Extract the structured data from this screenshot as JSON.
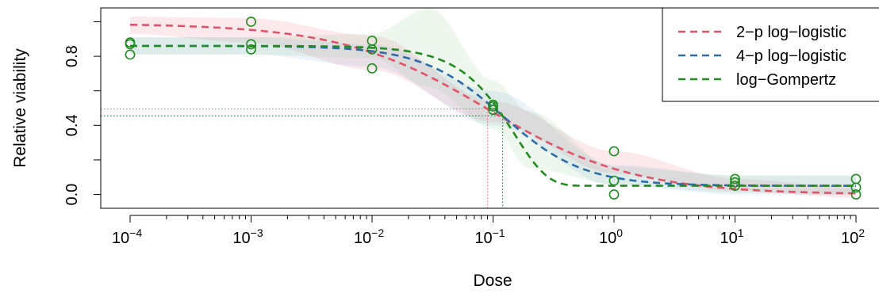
{
  "chart_data": {
    "type": "scatter",
    "title": "",
    "xlabel": "Dose",
    "ylabel": "Relative viability",
    "x_scale": "log10",
    "xlim": [
      0.0001,
      100
    ],
    "ylim": [
      -0.08,
      1.08
    ],
    "x_ticks": [
      {
        "value": 0.0001,
        "base": "10",
        "exp": "−4"
      },
      {
        "value": 0.001,
        "base": "10",
        "exp": "−3"
      },
      {
        "value": 0.01,
        "base": "10",
        "exp": "−2"
      },
      {
        "value": 0.1,
        "base": "10",
        "exp": "−1"
      },
      {
        "value": 1,
        "base": "10",
        "exp": "0"
      },
      {
        "value": 10,
        "base": "10",
        "exp": "1"
      },
      {
        "value": 100,
        "base": "10",
        "exp": "2"
      }
    ],
    "y_ticks": [
      {
        "value": 0.0,
        "label": "0.0"
      },
      {
        "value": 0.4,
        "label": "0.4"
      },
      {
        "value": 0.8,
        "label": "0.8"
      }
    ],
    "grid": false,
    "legend_position": "top-right",
    "points": {
      "name": "observations",
      "color": "#228B22",
      "data": [
        {
          "x": 0.0001,
          "y": 0.87
        },
        {
          "x": 0.0001,
          "y": 0.88
        },
        {
          "x": 0.0001,
          "y": 0.81
        },
        {
          "x": 0.001,
          "y": 1.0
        },
        {
          "x": 0.001,
          "y": 0.87
        },
        {
          "x": 0.001,
          "y": 0.84
        },
        {
          "x": 0.01,
          "y": 0.89
        },
        {
          "x": 0.01,
          "y": 0.84
        },
        {
          "x": 0.01,
          "y": 0.73
        },
        {
          "x": 0.1,
          "y": 0.52
        },
        {
          "x": 0.1,
          "y": 0.51
        },
        {
          "x": 0.1,
          "y": 0.49
        },
        {
          "x": 1,
          "y": 0.25
        },
        {
          "x": 1,
          "y": 0.08
        },
        {
          "x": 1,
          "y": 0.0
        },
        {
          "x": 10,
          "y": 0.09
        },
        {
          "x": 10,
          "y": 0.07
        },
        {
          "x": 10,
          "y": 0.05
        },
        {
          "x": 100,
          "y": 0.09
        },
        {
          "x": 100,
          "y": 0.04
        },
        {
          "x": 100,
          "y": 0.0
        }
      ]
    },
    "series": [
      {
        "name": "2−p log−logistic",
        "color": "#DF536B",
        "band_color": "#DF536B",
        "model": "ll2",
        "bottom": 0,
        "top": 0.99,
        "ec50": 0.09,
        "slope": 0.72,
        "ec50_y": 0.495,
        "band": [
          {
            "x": 0.0001,
            "lo": 0.93,
            "hi": 1.03
          },
          {
            "x": 0.001,
            "lo": 0.88,
            "hi": 1.02
          },
          {
            "x": 0.01,
            "lo": 0.72,
            "hi": 0.92
          },
          {
            "x": 0.1,
            "lo": 0.42,
            "hi": 0.54
          },
          {
            "x": 1,
            "lo": 0.12,
            "hi": 0.25
          },
          {
            "x": 10,
            "lo": 0.02,
            "hi": 0.09
          },
          {
            "x": 100,
            "lo": -0.02,
            "hi": 0.04
          }
        ]
      },
      {
        "name": "4−p log−logistic",
        "color": "#2E6BA8",
        "band_color": "#6A9FCF",
        "model": "ll4",
        "bottom": 0.05,
        "top": 0.86,
        "ec50": 0.12,
        "slope": 1.3,
        "ec50_y": 0.455,
        "band": [
          {
            "x": 0.0001,
            "lo": 0.81,
            "hi": 0.91
          },
          {
            "x": 0.001,
            "lo": 0.81,
            "hi": 0.91
          },
          {
            "x": 0.01,
            "lo": 0.74,
            "hi": 0.87
          },
          {
            "x": 0.1,
            "lo": 0.4,
            "hi": 0.6
          },
          {
            "x": 1,
            "lo": 0.05,
            "hi": 0.17
          },
          {
            "x": 10,
            "lo": 0.0,
            "hi": 0.11
          },
          {
            "x": 100,
            "lo": 0.0,
            "hi": 0.11
          }
        ]
      },
      {
        "name": "log−Gompertz",
        "color": "#228B22",
        "band_color": "#7DC47D",
        "model": "gompertz",
        "bottom": 0.05,
        "top": 0.86,
        "ec50": 0.12,
        "slope": 1.6,
        "ec50_y": 0.455,
        "band": [
          {
            "x": 0.0001,
            "lo": 0.81,
            "hi": 0.91
          },
          {
            "x": 0.001,
            "lo": 0.81,
            "hi": 0.91
          },
          {
            "x": 0.01,
            "lo": 0.79,
            "hi": 0.93
          },
          {
            "x": 0.03,
            "lo": 0.62,
            "hi": 1.08
          },
          {
            "x": 0.1,
            "lo": 0.38,
            "hi": 0.66
          },
          {
            "x": 0.2,
            "lo": 0.15,
            "hi": 0.48
          },
          {
            "x": 1,
            "lo": 0.06,
            "hi": 0.16
          },
          {
            "x": 10,
            "lo": 0.01,
            "hi": 0.11
          },
          {
            "x": 100,
            "lo": 0.0,
            "hi": 0.11
          }
        ]
      }
    ]
  }
}
